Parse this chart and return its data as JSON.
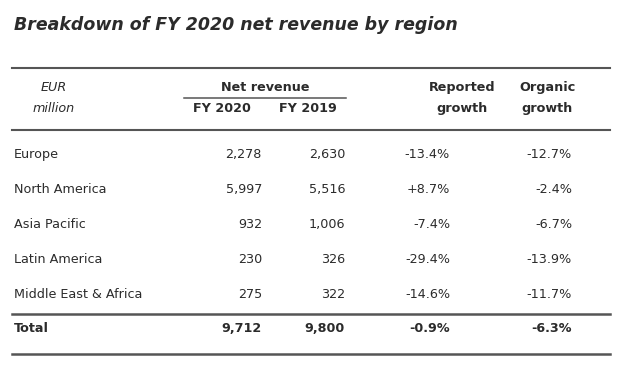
{
  "title": "Breakdown of FY 2020 net revenue by region",
  "rows": [
    [
      "Europe",
      "2,278",
      "2,630",
      "-13.4%",
      "-12.7%"
    ],
    [
      "North America",
      "5,997",
      "5,516",
      "+8.7%",
      "-2.4%"
    ],
    [
      "Asia Pacific",
      "932",
      "1,006",
      "-7.4%",
      "-6.7%"
    ],
    [
      "Latin America",
      "230",
      "326",
      "-29.4%",
      "-13.9%"
    ],
    [
      "Middle East & Africa",
      "275",
      "322",
      "-14.6%",
      "-11.7%"
    ]
  ],
  "total_row": [
    "Total",
    "9,712",
    "9,800",
    "-0.9%",
    "-6.3%"
  ],
  "bg_color": "#ffffff",
  "text_color": "#2b2b2b",
  "line_color": "#555555",
  "font_size": 9.2,
  "title_font_size": 12.5
}
